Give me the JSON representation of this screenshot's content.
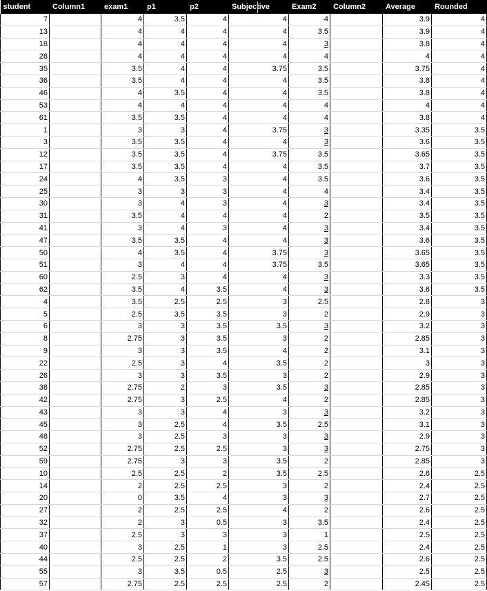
{
  "headers": [
    "student",
    "Column1",
    "exam1",
    "p1",
    "p2",
    "Subjective",
    "Exam2",
    "Column2",
    "Average",
    "Rounded"
  ],
  "rows": [
    [
      "7",
      "",
      "4",
      "3.5",
      "4",
      "4",
      "4",
      "",
      "3.9",
      "4"
    ],
    [
      "13",
      "",
      "4",
      "4",
      "4",
      "4",
      "3.5",
      "",
      "3.9",
      "4"
    ],
    [
      "18",
      "",
      "4",
      "4",
      "4",
      "4",
      "3",
      "",
      "3.8",
      "4"
    ],
    [
      "28",
      "",
      "4",
      "4",
      "4",
      "4",
      "4",
      "",
      "4",
      "4"
    ],
    [
      "35",
      "",
      "3.5",
      "4",
      "4",
      "3.75",
      "3.5",
      "",
      "3.75",
      "4"
    ],
    [
      "36",
      "",
      "3.5",
      "4",
      "4",
      "4",
      "3.5",
      "",
      "3.8",
      "4"
    ],
    [
      "46",
      "",
      "4",
      "3.5",
      "4",
      "4",
      "3.5",
      "",
      "3.8",
      "4"
    ],
    [
      "53",
      "",
      "4",
      "4",
      "4",
      "4",
      "4",
      "",
      "4",
      "4"
    ],
    [
      "61",
      "",
      "3.5",
      "3.5",
      "4",
      "4",
      "4",
      "",
      "3.8",
      "4"
    ],
    [
      "1",
      "",
      "3",
      "3",
      "4",
      "3.75",
      "3",
      "",
      "3.35",
      "3.5"
    ],
    [
      "3",
      "",
      "3.5",
      "3.5",
      "4",
      "4",
      "3",
      "",
      "3.6",
      "3.5"
    ],
    [
      "12",
      "",
      "3.5",
      "3.5",
      "4",
      "3.75",
      "3.5",
      "",
      "3.65",
      "3.5"
    ],
    [
      "17",
      "",
      "3.5",
      "3.5",
      "4",
      "4",
      "3.5",
      "",
      "3.7",
      "3.5"
    ],
    [
      "24",
      "",
      "4",
      "3.5",
      "3",
      "4",
      "3.5",
      "",
      "3.6",
      "3.5"
    ],
    [
      "25",
      "",
      "3",
      "3",
      "3",
      "4",
      "4",
      "",
      "3.4",
      "3.5"
    ],
    [
      "30",
      "",
      "3",
      "4",
      "3",
      "4",
      "3",
      "",
      "3.4",
      "3.5"
    ],
    [
      "31",
      "",
      "3.5",
      "4",
      "4",
      "4",
      "2",
      "",
      "3.5",
      "3.5"
    ],
    [
      "41",
      "",
      "3",
      "4",
      "3",
      "4",
      "3",
      "",
      "3.4",
      "3.5"
    ],
    [
      "47",
      "",
      "3.5",
      "3.5",
      "4",
      "4",
      "3",
      "",
      "3.6",
      "3.5"
    ],
    [
      "50",
      "",
      "4",
      "3.5",
      "4",
      "3.75",
      "3",
      "",
      "3.65",
      "3.5"
    ],
    [
      "51",
      "",
      "3",
      "4",
      "4",
      "3.75",
      "3.5",
      "",
      "3.65",
      "3.5"
    ],
    [
      "60",
      "",
      "2.5",
      "3",
      "4",
      "4",
      "3",
      "",
      "3.3",
      "3.5"
    ],
    [
      "62",
      "",
      "3.5",
      "4",
      "3.5",
      "4",
      "3",
      "",
      "3.6",
      "3.5"
    ],
    [
      "4",
      "",
      "3.5",
      "2.5",
      "2.5",
      "3",
      "2.5",
      "",
      "2.8",
      "3"
    ],
    [
      "5",
      "",
      "2.5",
      "3.5",
      "3.5",
      "3",
      "2",
      "",
      "2.9",
      "3"
    ],
    [
      "6",
      "",
      "3",
      "3",
      "3.5",
      "3.5",
      "3",
      "",
      "3.2",
      "3"
    ],
    [
      "8",
      "",
      "2.75",
      "3",
      "3.5",
      "3",
      "2",
      "",
      "2.85",
      "3"
    ],
    [
      "9",
      "",
      "3",
      "3",
      "3.5",
      "4",
      "2",
      "",
      "3.1",
      "3"
    ],
    [
      "22",
      "",
      "2.5",
      "3",
      "4",
      "3.5",
      "2",
      "",
      "3",
      "3"
    ],
    [
      "26",
      "",
      "3",
      "3",
      "3.5",
      "3",
      "2",
      "",
      "2.9",
      "3"
    ],
    [
      "38",
      "",
      "2.75",
      "2",
      "3",
      "3.5",
      "3",
      "",
      "2.85",
      "3"
    ],
    [
      "42",
      "",
      "2.75",
      "3",
      "2.5",
      "4",
      "2",
      "",
      "2.85",
      "3"
    ],
    [
      "43",
      "",
      "3",
      "3",
      "4",
      "3",
      "3",
      "",
      "3.2",
      "3"
    ],
    [
      "45",
      "",
      "3",
      "2.5",
      "4",
      "3.5",
      "2.5",
      "",
      "3.1",
      "3"
    ],
    [
      "48",
      "",
      "3",
      "2.5",
      "3",
      "3",
      "3",
      "",
      "2.9",
      "3"
    ],
    [
      "52",
      "",
      "2.75",
      "2.5",
      "2.5",
      "3",
      "3",
      "",
      "2.75",
      "3"
    ],
    [
      "59",
      "",
      "2.75",
      "3",
      "3",
      "3.5",
      "2",
      "",
      "2.85",
      "3"
    ],
    [
      "10",
      "",
      "2.5",
      "2.5",
      "2",
      "3.5",
      "2.5",
      "",
      "2.6",
      "2.5"
    ],
    [
      "14",
      "",
      "2",
      "2.5",
      "2.5",
      "3",
      "2",
      "",
      "2.4",
      "2.5"
    ],
    [
      "20",
      "",
      "0",
      "3.5",
      "4",
      "3",
      "3",
      "",
      "2.7",
      "2.5"
    ],
    [
      "27",
      "",
      "2",
      "2.5",
      "2.5",
      "4",
      "2",
      "",
      "2.6",
      "2.5"
    ],
    [
      "32",
      "",
      "2",
      "3",
      "0.5",
      "3",
      "3.5",
      "",
      "2.4",
      "2.5"
    ],
    [
      "37",
      "",
      "2.5",
      "3",
      "3",
      "3",
      "1",
      "",
      "2.5",
      "2.5"
    ],
    [
      "40",
      "",
      "3",
      "2.5",
      "1",
      "3",
      "2.5",
      "",
      "2.4",
      "2.5"
    ],
    [
      "44",
      "",
      "2.5",
      "2.5",
      "2",
      "3.5",
      "2.5",
      "",
      "2.6",
      "2.5"
    ],
    [
      "55",
      "",
      "3",
      "3.5",
      "0.5",
      "2.5",
      "3",
      "",
      "2.5",
      "2.5"
    ],
    [
      "57",
      "",
      "2.75",
      "2.5",
      "2.5",
      "2.5",
      "2",
      "",
      "2.45",
      "2.5"
    ]
  ],
  "underlined_exam2_rows": [
    2,
    9,
    10,
    15,
    17,
    18,
    19,
    21,
    22,
    25,
    30,
    32,
    34,
    35,
    39,
    45
  ]
}
